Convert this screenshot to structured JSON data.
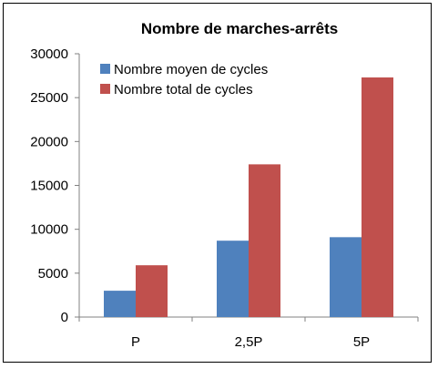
{
  "chart_data": {
    "type": "bar",
    "title": "Nombre de marches-arrêts",
    "xlabel": "",
    "ylabel": "",
    "categories": [
      "P",
      "2,5P",
      "5P"
    ],
    "series": [
      {
        "name": "Nombre moyen de cycles",
        "values": [
          3000,
          8700,
          9100
        ],
        "color": "#4F81BD"
      },
      {
        "name": "Nombre total de cycles",
        "values": [
          5900,
          17400,
          27300
        ],
        "color": "#C0504D"
      }
    ],
    "ylim": [
      0,
      30000
    ],
    "yticks": [
      "0",
      "5000",
      "10000",
      "15000",
      "20000",
      "25000",
      "30000"
    ],
    "grid": false,
    "legend_position": "top-left"
  }
}
